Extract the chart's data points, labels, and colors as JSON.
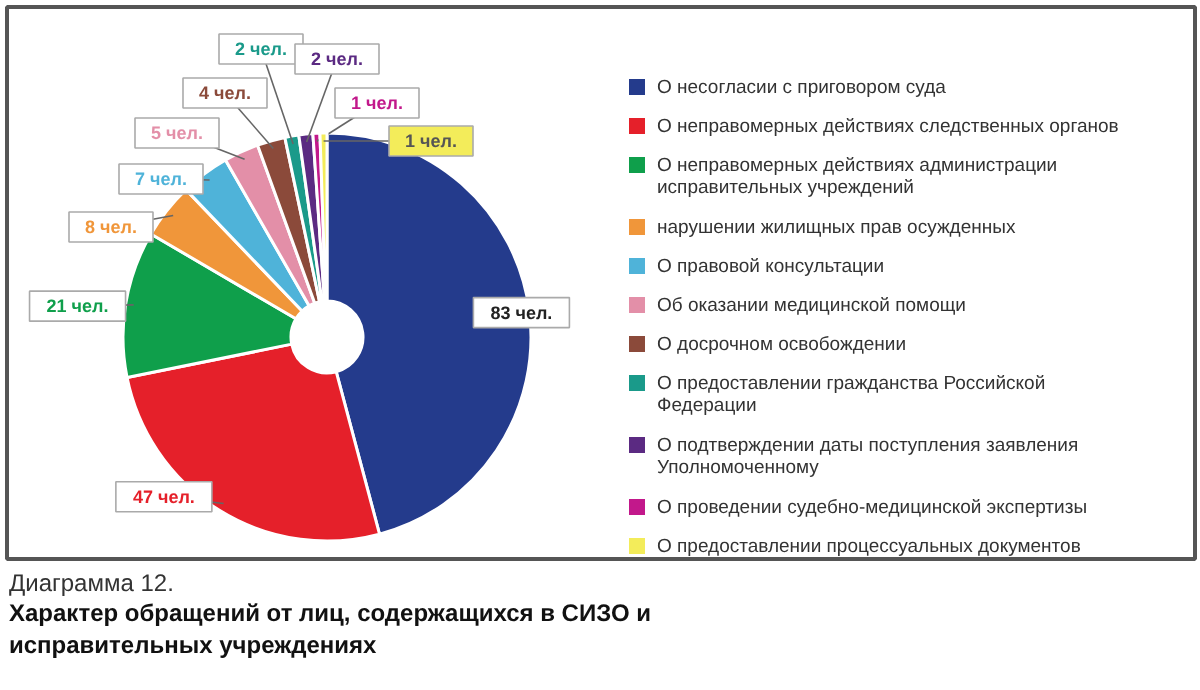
{
  "chart_data": {
    "type": "donut",
    "title": "Диаграмма 12.",
    "subtitle": "Характер обращений от лиц, содержащихся в СИЗО и исправительных учреждениях",
    "categories": [
      "О несогласии с приговором суда",
      "О неправомерных действиях следственных органов",
      "О неправомерных действиях администрации исправительных учреждений",
      " нарушении жилищных прав осужденных",
      "О правовой консультации",
      "Об оказании медицинской помощи",
      "О досрочном освобождении",
      "О предоставлении гражданства Российской Федерации",
      "О подтверждении даты поступления заявления Уполномоченному",
      "О проведении судебно-медицинской экспертизы",
      "О предоставлении процессуальных документов"
    ],
    "values": [
      83,
      47,
      21,
      8,
      7,
      5,
      4,
      2,
      2,
      1,
      1
    ],
    "colors": [
      "#243b8c",
      "#e5202a",
      "#0f9f4b",
      "#f0963a",
      "#4fb3d9",
      "#e38fa8",
      "#8b4a3a",
      "#1a9a8a",
      "#5b2a82",
      "#c2188b",
      "#f3ec5a"
    ],
    "value_labels": [
      "83 чел.",
      "47 чел.",
      "21 чел.",
      "8 чел.",
      "7 чел.",
      "5 чел.",
      "4 чел.",
      "2 чел.",
      "2 чел.",
      "1 чел.",
      "1 чел."
    ],
    "legend": "right"
  }
}
